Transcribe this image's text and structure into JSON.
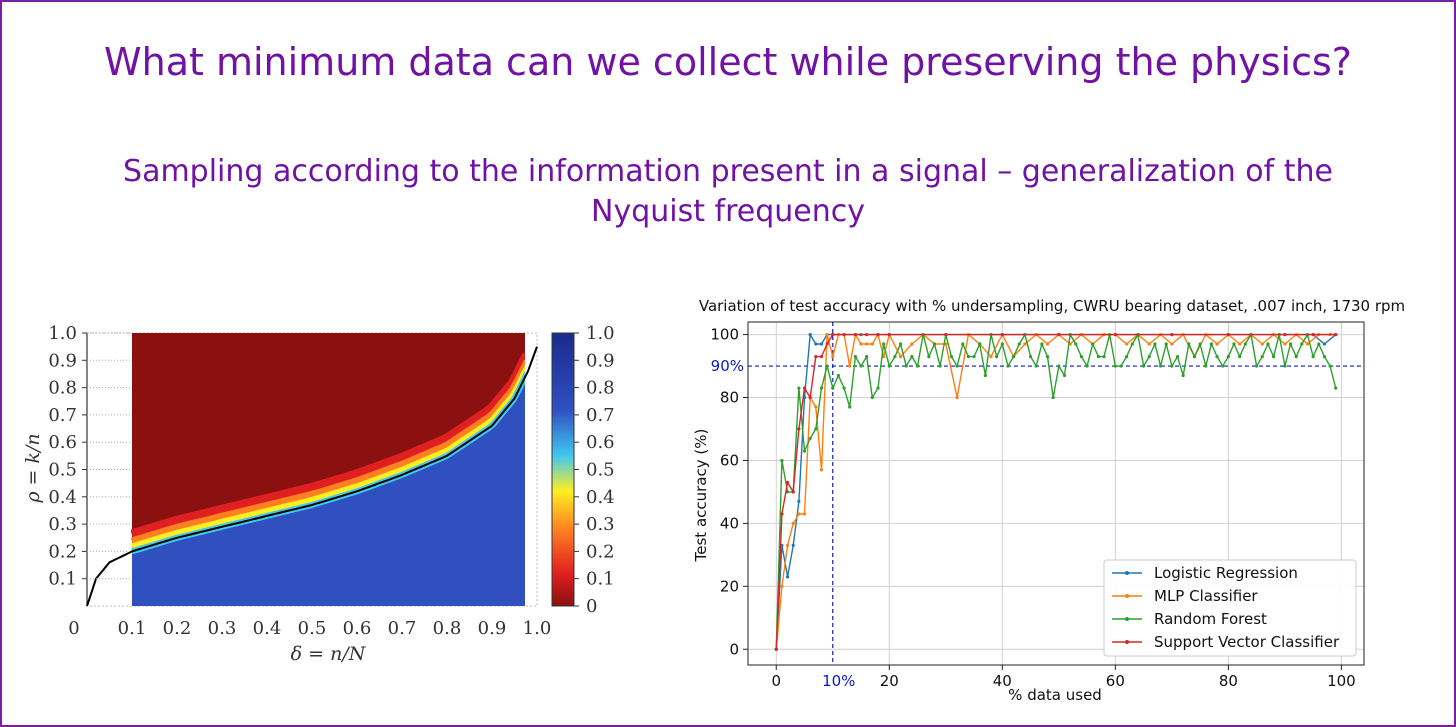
{
  "slide": {
    "title": "What minimum data can we collect while preserving the physics?",
    "subtitle": "Sampling according to the information present in a signal – generalization of the Nyquist frequency",
    "border_color": "#7a1fa2",
    "text_color": "#7013a5"
  },
  "chart_data": [
    {
      "type": "heatmap",
      "title": "",
      "xlabel": "δ = n/N",
      "ylabel": "ρ = k/n",
      "x_ticks": [
        "0",
        "0.1",
        "0.2",
        "0.3",
        "0.4",
        "0.5",
        "0.6",
        "0.7",
        "0.8",
        "0.9",
        "1.0"
      ],
      "y_ticks": [
        "0.1",
        "0.2",
        "0.3",
        "0.4",
        "0.5",
        "0.6",
        "0.7",
        "0.8",
        "0.9",
        "1.0"
      ],
      "xlim": [
        0,
        1.0
      ],
      "ylim": [
        0,
        1.0
      ],
      "colorbar_ticks": [
        "0",
        "0.1",
        "0.2",
        "0.3",
        "0.4",
        "0.5",
        "0.6",
        "0.7",
        "0.8",
        "0.9",
        "1.0"
      ],
      "colorbar_range": [
        0,
        1.0
      ],
      "colormap": [
        "#8b1010",
        "#e02020",
        "#ff8020",
        "#ffee20",
        "#40c8f0",
        "#3050c0",
        "#1a2a8c"
      ],
      "data_region_x": [
        0.1,
        0.98
      ],
      "phase_boundary": {
        "x": [
          0.0,
          0.02,
          0.05,
          0.1,
          0.2,
          0.3,
          0.4,
          0.5,
          0.6,
          0.7,
          0.8,
          0.9,
          0.95,
          0.98,
          1.0
        ],
        "y": [
          0.0,
          0.1,
          0.16,
          0.2,
          0.25,
          0.29,
          0.33,
          0.37,
          0.42,
          0.48,
          0.55,
          0.66,
          0.76,
          0.86,
          0.95
        ]
      }
    },
    {
      "type": "line",
      "title": "Variation of test accuracy with % undersampling, CWRU bearing dataset, .007 inch, 1730 rpm",
      "xlabel": "% data used",
      "ylabel": "Test accuracy (%)",
      "xlim": [
        -5,
        104
      ],
      "ylim": [
        -5,
        104
      ],
      "x_ticks": [
        0,
        20,
        40,
        60,
        80,
        100
      ],
      "y_ticks": [
        0,
        20,
        40,
        60,
        80,
        100
      ],
      "grid": true,
      "legend_position": "bottom-right",
      "annotations": {
        "hline": {
          "y": 90,
          "label": "90%",
          "color": "#0a1ac8"
        },
        "vline": {
          "x": 10,
          "label": "10%",
          "color": "#0a1ac8"
        }
      },
      "series": [
        {
          "name": "Logistic Regression",
          "color": "#1f77b4",
          "x": [
            0,
            1,
            2,
            3,
            4,
            5,
            6,
            7,
            8,
            9,
            10,
            15,
            20,
            30,
            40,
            50,
            60,
            70,
            80,
            90,
            95,
            97,
            99
          ],
          "y": [
            0,
            33,
            23,
            33,
            47,
            80,
            100,
            97,
            97,
            100,
            100,
            100,
            100,
            100,
            100,
            100,
            100,
            100,
            100,
            100,
            100,
            97,
            100
          ]
        },
        {
          "name": "MLP Classifier",
          "color": "#ff7f0e",
          "x": [
            0,
            1,
            2,
            3,
            4,
            5,
            6,
            7,
            8,
            9,
            10,
            11,
            12,
            13,
            14,
            15,
            16,
            17,
            18,
            19,
            20,
            22,
            24,
            26,
            28,
            30,
            32,
            34,
            36,
            38,
            40,
            42,
            44,
            46,
            48,
            50,
            52,
            54,
            56,
            58,
            60,
            62,
            64,
            66,
            68,
            70,
            72,
            74,
            76,
            78,
            80,
            82,
            84,
            86,
            88,
            90,
            92,
            94,
            96,
            98,
            99
          ],
          "y": [
            0,
            20,
            33,
            40,
            43,
            43,
            80,
            77,
            57,
            100,
            93,
            100,
            100,
            90,
            100,
            97,
            97,
            97,
            100,
            93,
            100,
            93,
            97,
            100,
            97,
            97,
            80,
            100,
            97,
            93,
            100,
            93,
            97,
            100,
            97,
            100,
            97,
            100,
            97,
            100,
            100,
            97,
            100,
            97,
            100,
            97,
            100,
            93,
            100,
            97,
            100,
            97,
            100,
            97,
            100,
            97,
            100,
            97,
            100,
            100,
            100
          ]
        },
        {
          "name": "Random Forest",
          "color": "#2ca02c",
          "x": [
            0,
            1,
            2,
            3,
            4,
            5,
            6,
            7,
            8,
            9,
            10,
            11,
            12,
            13,
            14,
            15,
            16,
            17,
            18,
            19,
            20,
            21,
            22,
            23,
            24,
            25,
            26,
            27,
            28,
            29,
            30,
            31,
            32,
            33,
            34,
            35,
            36,
            37,
            38,
            39,
            40,
            41,
            42,
            43,
            44,
            45,
            46,
            47,
            48,
            49,
            50,
            51,
            52,
            53,
            54,
            55,
            56,
            57,
            58,
            59,
            60,
            61,
            62,
            63,
            64,
            65,
            66,
            67,
            68,
            69,
            70,
            71,
            72,
            73,
            74,
            75,
            76,
            77,
            78,
            79,
            80,
            81,
            82,
            83,
            84,
            85,
            86,
            87,
            88,
            89,
            90,
            91,
            92,
            93,
            94,
            95,
            96,
            97,
            98,
            99
          ],
          "y": [
            0,
            60,
            50,
            50,
            83,
            63,
            67,
            70,
            83,
            90,
            83,
            87,
            83,
            77,
            93,
            90,
            93,
            80,
            83,
            97,
            90,
            93,
            97,
            90,
            93,
            90,
            100,
            93,
            97,
            90,
            100,
            93,
            90,
            97,
            93,
            93,
            97,
            87,
            100,
            93,
            97,
            90,
            93,
            97,
            100,
            93,
            90,
            97,
            93,
            80,
            90,
            87,
            100,
            97,
            93,
            90,
            97,
            93,
            93,
            100,
            90,
            90,
            93,
            97,
            100,
            90,
            93,
            97,
            90,
            97,
            90,
            93,
            87,
            97,
            93,
            97,
            90,
            97,
            93,
            90,
            93,
            97,
            93,
            97,
            100,
            90,
            93,
            97,
            93,
            100,
            90,
            97,
            93,
            97,
            100,
            93,
            97,
            93,
            90,
            83
          ]
        },
        {
          "name": "Support Vector Classifier",
          "color": "#d62728",
          "x": [
            0,
            1,
            2,
            3,
            4,
            5,
            6,
            7,
            8,
            9,
            10,
            12,
            14,
            16,
            18,
            20,
            30,
            40,
            50,
            60,
            70,
            80,
            90,
            95,
            99
          ],
          "y": [
            0,
            43,
            53,
            50,
            70,
            83,
            80,
            93,
            93,
            97,
            100,
            100,
            100,
            100,
            100,
            100,
            100,
            100,
            100,
            100,
            100,
            100,
            100,
            100,
            100
          ]
        }
      ]
    }
  ]
}
